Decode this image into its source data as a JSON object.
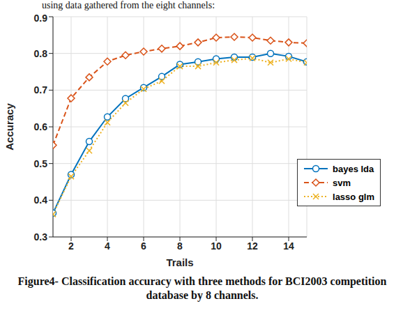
{
  "header_text": "using data gathered from the eight channels:",
  "caption": "Figure4- Classification accuracy with three methods for BCI2003 competition database by 8 channels.",
  "chart_data": {
    "type": "line",
    "x_label": "Trails",
    "y_label": "Accuracy",
    "x": [
      1,
      2,
      3,
      4,
      5,
      6,
      7,
      8,
      9,
      10,
      11,
      12,
      13,
      14,
      15
    ],
    "series": [
      {
        "name": "bayes lda",
        "color": "#0072bd",
        "marker": "circle",
        "line_style": "solid",
        "values": [
          0.365,
          0.47,
          0.56,
          0.627,
          0.677,
          0.707,
          0.737,
          0.77,
          0.777,
          0.785,
          0.79,
          0.79,
          0.8,
          0.792,
          0.777
        ]
      },
      {
        "name": "svm",
        "color": "#d95319",
        "marker": "diamond",
        "line_style": "dashed",
        "values": [
          0.55,
          0.678,
          0.735,
          0.778,
          0.795,
          0.805,
          0.813,
          0.82,
          0.83,
          0.843,
          0.845,
          0.843,
          0.835,
          0.83,
          0.828
        ]
      },
      {
        "name": "lasso glm",
        "color": "#edb120",
        "marker": "x",
        "line_style": "dotted",
        "values": [
          0.362,
          0.465,
          0.535,
          0.612,
          0.665,
          0.703,
          0.725,
          0.765,
          0.765,
          0.775,
          0.782,
          0.787,
          0.775,
          0.785,
          0.775
        ]
      }
    ],
    "xlim": [
      1,
      15
    ],
    "xticks": [
      2,
      4,
      6,
      8,
      10,
      12,
      14
    ],
    "ylim": [
      0.3,
      0.9
    ],
    "yticks": [
      0.3,
      0.4,
      0.5,
      0.6,
      0.7,
      0.8,
      0.9
    ],
    "grid": true,
    "legend": "right"
  }
}
